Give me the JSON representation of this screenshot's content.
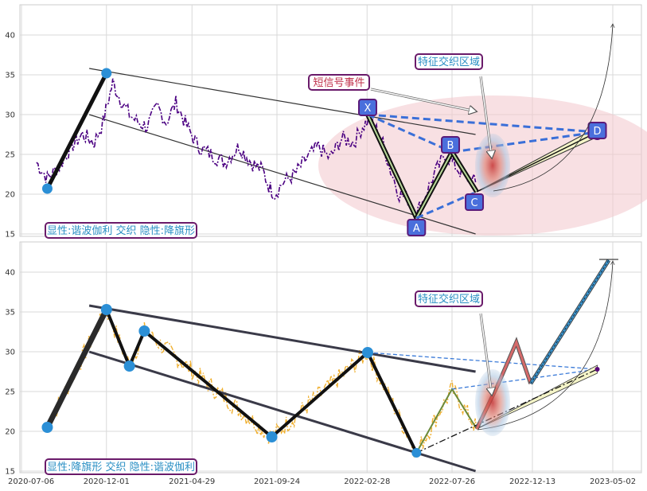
{
  "chart_data": [
    {
      "type": "line",
      "panel": "top",
      "ylim": [
        15,
        44
      ],
      "yticks": [
        15,
        20,
        25,
        30,
        35,
        40
      ],
      "grid": true,
      "series_color": "#4b0082",
      "price_points": [
        [
          "2020-08-01",
          24.0
        ],
        [
          "2020-08-20",
          22.0
        ],
        [
          "2020-09-10",
          23.5
        ],
        [
          "2020-10-01",
          26.0
        ],
        [
          "2020-10-20",
          27.5
        ],
        [
          "2020-11-10",
          26.5
        ],
        [
          "2020-11-25",
          29.0
        ],
        [
          "2020-12-05",
          32.0
        ],
        [
          "2020-12-12",
          34.0
        ],
        [
          "2020-12-25",
          32.0
        ],
        [
          "2021-01-10",
          30.0
        ],
        [
          "2021-01-25",
          29.0
        ],
        [
          "2021-02-10",
          28.5
        ],
        [
          "2021-02-28",
          31.0
        ],
        [
          "2021-03-15",
          29.0
        ],
        [
          "2021-04-01",
          31.5
        ],
        [
          "2021-04-20",
          28.5
        ],
        [
          "2021-05-10",
          26.0
        ],
        [
          "2021-06-01",
          25.0
        ],
        [
          "2021-06-25",
          24.0
        ],
        [
          "2021-07-20",
          26.0
        ],
        [
          "2021-08-10",
          24.0
        ],
        [
          "2021-08-30",
          23.0
        ],
        [
          "2021-09-10",
          21.0
        ],
        [
          "2021-09-20",
          20.0
        ],
        [
          "2021-10-05",
          21.5
        ],
        [
          "2021-10-25",
          22.5
        ],
        [
          "2021-11-15",
          24.5
        ],
        [
          "2021-12-05",
          26.0
        ],
        [
          "2021-12-25",
          24.5
        ],
        [
          "2022-01-15",
          27.0
        ],
        [
          "2022-02-05",
          26.5
        ],
        [
          "2022-02-20",
          28.5
        ],
        [
          "2022-03-05",
          29.5
        ],
        [
          "2022-03-25",
          27.0
        ],
        [
          "2022-04-10",
          23.0
        ],
        [
          "2022-04-25",
          20.0
        ],
        [
          "2022-05-10",
          19.5
        ],
        [
          "2022-05-25",
          17.5
        ],
        [
          "2022-06-10",
          20.0
        ],
        [
          "2022-06-25",
          22.5
        ],
        [
          "2022-07-15",
          25.0
        ],
        [
          "2022-08-01",
          23.5
        ],
        [
          "2022-08-20",
          22.0
        ],
        [
          "2022-09-05",
          21.5
        ]
      ],
      "pattern_points": [
        {
          "label": "",
          "date": "2020-08-20",
          "value": 20.7
        },
        {
          "label": "",
          "date": "2020-12-01",
          "value": 35.2
        },
        {
          "label": "X",
          "date": "2022-03-01",
          "value": 30.0
        },
        {
          "label": "A",
          "date": "2022-05-25",
          "value": 17.0
        },
        {
          "label": "B",
          "date": "2022-07-26",
          "value": 25.3
        },
        {
          "label": "C",
          "date": "2022-09-07",
          "value": 20.3
        },
        {
          "label": "D",
          "date": "2023-04-05",
          "value": 27.8
        }
      ],
      "channel_upper": [
        [
          "2020-11-01",
          35.8
        ],
        [
          "2022-09-05",
          27.5
        ]
      ],
      "channel_lower": [
        [
          "2020-11-01",
          30.0
        ],
        [
          "2022-09-05",
          15.0
        ]
      ],
      "annotations": [
        {
          "id": "short_signal",
          "text": "短信号事件"
        },
        {
          "id": "feature_zone",
          "text": "特征交织区域"
        },
        {
          "id": "caption",
          "text": "显性:谐波伽利 交织 隐性:降旗形"
        }
      ]
    },
    {
      "type": "line",
      "panel": "bottom",
      "ylim": [
        15,
        44
      ],
      "yticks": [
        15,
        20,
        25,
        30,
        35,
        40
      ],
      "grid": true,
      "series_color": "#f0b030",
      "x_tick_labels": [
        "2020-07-06",
        "2020-12-01",
        "2021-04-29",
        "2021-09-24",
        "2022-02-28",
        "2022-07-26",
        "2022-12-13",
        "2023-05-02"
      ],
      "zigzag_points": [
        [
          "2020-08-20",
          20.5
        ],
        [
          "2020-12-01",
          35.3
        ],
        [
          "2021-01-10",
          28.2
        ],
        [
          "2021-02-05",
          32.6
        ],
        [
          "2021-09-15",
          19.3
        ],
        [
          "2022-03-01",
          29.9
        ],
        [
          "2022-05-25",
          17.3
        ],
        [
          "2022-07-26",
          25.3
        ],
        [
          "2022-09-07",
          20.3
        ],
        [
          "2022-10-15",
          26.0
        ],
        [
          "2022-11-15",
          31.2
        ],
        [
          "2022-12-10",
          26.0
        ],
        [
          "2023-04-25",
          41.5
        ]
      ],
      "projection_end": [
        "2023-04-05",
        27.8
      ],
      "annotations": [
        {
          "id": "feature_zone",
          "text": "特征交织区域"
        },
        {
          "id": "caption",
          "text": "显性:降旗形 交织 隐性:谐波伽利"
        }
      ]
    }
  ]
}
